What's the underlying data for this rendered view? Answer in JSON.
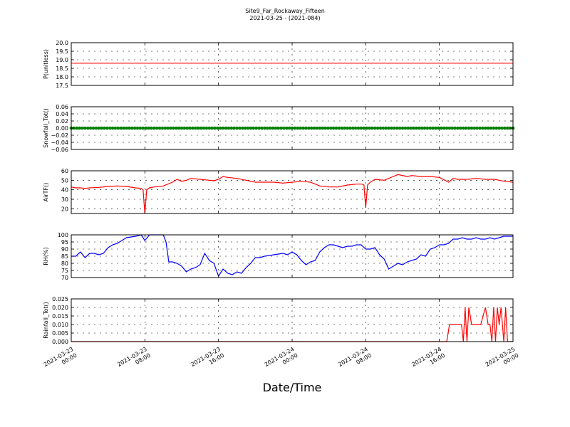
{
  "title": "Site9_Far_Rockaway_Fifteen",
  "subtitle": "2021-03-25 - (2021-084)",
  "xlabel": "Date/Time",
  "x_ticks": [
    {
      "t": 0,
      "line1": "2021-03-23",
      "line2": "00:00"
    },
    {
      "t": 8,
      "line1": "2021-03-23",
      "line2": "08:00"
    },
    {
      "t": 16,
      "line1": "2021-03-23",
      "line2": "16:00"
    },
    {
      "t": 24,
      "line1": "2021-03-24",
      "line2": "00:00"
    },
    {
      "t": 32,
      "line1": "2021-03-24",
      "line2": "08:00"
    },
    {
      "t": 40,
      "line1": "2021-03-24",
      "line2": "16:00"
    },
    {
      "t": 48,
      "line1": "2021-03-25",
      "line2": "00:00"
    }
  ],
  "chart_data": [
    {
      "type": "line",
      "ylabel": "P(unitless)",
      "ylim": [
        17.5,
        20.0
      ],
      "yticks": [
        "17.5",
        "18.0",
        "18.5",
        "19.0",
        "19.5",
        "20.0"
      ],
      "yvals": [
        17.5,
        18.0,
        18.5,
        19.0,
        19.5,
        20.0
      ],
      "grid": true,
      "series": [
        {
          "color": "#ff0000",
          "marker": false,
          "x": [
            0,
            48
          ],
          "values": [
            18.8,
            18.8
          ]
        }
      ]
    },
    {
      "type": "line",
      "ylabel": "Snowfall_Tot()",
      "ylim": [
        -0.06,
        0.06
      ],
      "yticks": [
        "−0.06",
        "−0.04",
        "−0.02",
        "0.00",
        "0.02",
        "0.04",
        "0.06"
      ],
      "yvals": [
        -0.06,
        -0.04,
        -0.02,
        0.0,
        0.02,
        0.04,
        0.06
      ],
      "grid": true,
      "series": [
        {
          "color": "#008000",
          "marker": true,
          "x": [
            0,
            48
          ],
          "values": [
            0,
            0
          ]
        }
      ]
    },
    {
      "type": "line",
      "ylabel": "AirTF()",
      "ylim": [
        15,
        60
      ],
      "yticks": [
        "20",
        "30",
        "40",
        "50",
        "60"
      ],
      "yvals": [
        20,
        30,
        40,
        50,
        60
      ],
      "grid": true,
      "series": [
        {
          "color": "#ff0000",
          "marker": false,
          "x": [
            0,
            0.5,
            1,
            1.5,
            2,
            3,
            4,
            5,
            6,
            7,
            7.6,
            7.8,
            8.0,
            8.2,
            8.5,
            9,
            10,
            11,
            11.5,
            12,
            12.5,
            13,
            14,
            15,
            15.5,
            16,
            16.5,
            17,
            18,
            19,
            20,
            21,
            22,
            23,
            24,
            25,
            26,
            27,
            28,
            29,
            30,
            31,
            31.6,
            31.8,
            32.0,
            32.2,
            32.5,
            33,
            34,
            35,
            35.5,
            36,
            36.5,
            37,
            38,
            39,
            40,
            41,
            41.5,
            42,
            43,
            44,
            45,
            46,
            46.5,
            47,
            48
          ],
          "values": [
            43,
            42,
            42,
            41.5,
            42,
            42.5,
            43.5,
            44,
            43.5,
            42,
            41.5,
            40,
            15,
            40,
            42,
            43,
            44,
            48,
            51,
            49,
            50,
            52,
            51,
            50,
            49.5,
            51,
            54,
            53,
            52,
            50,
            48,
            48,
            48,
            47,
            48,
            49,
            48,
            44,
            43,
            43,
            45,
            46,
            46,
            45,
            21,
            45,
            48,
            51,
            50,
            54,
            56,
            55,
            54,
            55,
            54,
            54,
            53,
            48,
            52,
            51,
            51,
            52,
            51,
            51,
            50,
            49,
            48
          ]
        }
      ]
    },
    {
      "type": "line",
      "ylabel": "RH(%)",
      "ylim": [
        70,
        100
      ],
      "yticks": [
        "70",
        "75",
        "80",
        "85",
        "90",
        "95",
        "100"
      ],
      "yvals": [
        70,
        75,
        80,
        85,
        90,
        95,
        100
      ],
      "grid": true,
      "series": [
        {
          "color": "#0000ff",
          "marker": false,
          "x": [
            0,
            0.5,
            1,
            1.5,
            2,
            2.5,
            3,
            3.5,
            4,
            4.5,
            5,
            5.5,
            6,
            7,
            7.6,
            8,
            8.5,
            9,
            10,
            10.3,
            10.6,
            11,
            11.5,
            12,
            12.5,
            13,
            13.5,
            14,
            14.5,
            15,
            15.5,
            16,
            16.5,
            17,
            17.5,
            18,
            18.5,
            19,
            19.5,
            20,
            20.5,
            21,
            22,
            23,
            23.5,
            24,
            24.5,
            25,
            25.5,
            26,
            26.5,
            27,
            27.5,
            28,
            28.5,
            29,
            29.5,
            30,
            30.5,
            31,
            31.5,
            32,
            32.5,
            33,
            33.5,
            34,
            34.5,
            35,
            35.5,
            36,
            36.5,
            37,
            37.5,
            38,
            38.5,
            39,
            39.5,
            40,
            40.5,
            41,
            41.5,
            42,
            42.5,
            43,
            43.5,
            44,
            44.5,
            45,
            45.5,
            46,
            46.5,
            47,
            48
          ],
          "values": [
            85,
            85,
            88,
            84,
            87,
            87,
            86,
            87,
            91,
            93,
            94,
            96,
            98,
            99,
            100,
            96,
            100,
            100,
            100,
            95,
            81,
            81,
            80,
            78,
            74,
            76,
            77,
            79,
            87,
            82,
            80,
            71,
            76,
            73,
            72,
            74,
            73,
            77,
            80,
            84,
            84,
            85,
            86,
            87,
            86,
            88,
            86,
            82,
            79,
            81,
            82,
            88,
            91,
            93,
            93,
            92,
            91,
            92,
            92,
            93,
            93,
            90,
            90,
            91,
            86,
            83,
            76,
            78,
            80,
            79,
            81,
            82,
            83,
            86,
            85,
            90,
            91,
            93,
            93,
            94,
            97,
            97,
            98,
            97,
            97,
            98,
            97,
            97,
            98,
            97,
            98,
            99,
            99
          ]
        }
      ]
    },
    {
      "type": "line",
      "ylabel": "Rainfall_Tot()",
      "ylim": [
        0.0,
        0.025
      ],
      "yticks": [
        "0.000",
        "0.005",
        "0.010",
        "0.015",
        "0.020",
        "0.025"
      ],
      "yvals": [
        0.0,
        0.005,
        0.01,
        0.015,
        0.02,
        0.025
      ],
      "grid": true,
      "series": [
        {
          "color": "#ff0000",
          "marker": false,
          "x": [
            0,
            40.8,
            41.1,
            42.4,
            42.6,
            42.8,
            43.0,
            43.2,
            43.5,
            44.5,
            45.0,
            45.3,
            45.5,
            45.7,
            45.9,
            46.1,
            46.3,
            46.5,
            46.7,
            47.0,
            47.2,
            47.4,
            48
          ],
          "values": [
            0,
            0,
            0.01,
            0.01,
            0.0,
            0.02,
            0.0,
            0.02,
            0.01,
            0.01,
            0.02,
            0.01,
            0.01,
            0.0,
            0.02,
            0.0,
            0.02,
            0.01,
            0.02,
            0.0,
            0.02,
            0.0,
            0.0
          ]
        }
      ]
    }
  ]
}
